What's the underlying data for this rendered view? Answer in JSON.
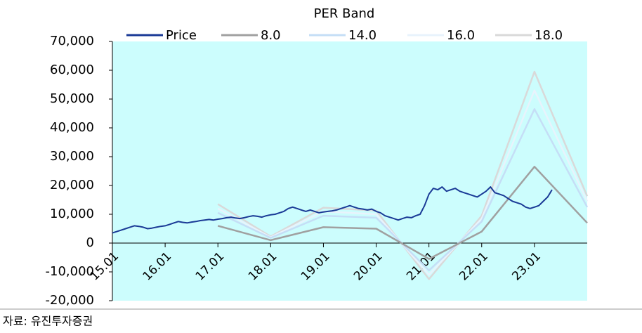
{
  "chart_data": {
    "type": "line",
    "title": "PER Band",
    "xlim": [
      "15.01",
      "24.01"
    ],
    "xticks": [
      "15.01",
      "16.01",
      "17.01",
      "18.01",
      "19.01",
      "20.01",
      "21.01",
      "22.01",
      "23.01"
    ],
    "ylim": [
      -20000,
      70000
    ],
    "yticks": [
      {
        "value": -20000,
        "label": "-20,000"
      },
      {
        "value": -10000,
        "label": "-10,000"
      },
      0,
      {
        "value": 10000,
        "label": "10,000"
      },
      {
        "value": 20000,
        "label": "20,000"
      },
      {
        "value": 30000,
        "label": "30,000"
      },
      {
        "value": 40000,
        "label": "40,000"
      },
      {
        "value": 50000,
        "label": "50,000"
      },
      {
        "value": 60000,
        "label": "60,000"
      },
      {
        "value": 70000,
        "label": "70,000"
      }
    ],
    "background": "#ccfdfd",
    "series": [
      {
        "name": "Price",
        "color": "#1a3a96",
        "x": [
          "15.01",
          "15.02",
          "15.03",
          "15.04",
          "15.05",
          "15.06",
          "15.07",
          "15.08",
          "15.09",
          "15.10",
          "15.11",
          "15.12",
          "16.01",
          "16.02",
          "16.03",
          "16.04",
          "16.05",
          "16.06",
          "16.07",
          "16.08",
          "16.09",
          "16.10",
          "16.11",
          "16.12",
          "17.01",
          "17.02",
          "17.03",
          "17.04",
          "17.05",
          "17.06",
          "17.07",
          "17.08",
          "17.09",
          "17.10",
          "17.11",
          "17.12",
          "18.01",
          "18.02",
          "18.03",
          "18.04",
          "18.05",
          "18.06",
          "18.07",
          "18.08",
          "18.09",
          "18.10",
          "18.11",
          "18.12",
          "19.01",
          "19.02",
          "19.03",
          "19.04",
          "19.05",
          "19.06",
          "19.07",
          "19.08",
          "19.09",
          "19.10",
          "19.11",
          "19.12",
          "20.01",
          "20.02",
          "20.03",
          "20.04",
          "20.05",
          "20.06",
          "20.07",
          "20.08",
          "20.09",
          "20.10",
          "20.11",
          "20.12",
          "21.01",
          "21.02",
          "21.03",
          "21.04",
          "21.05",
          "21.06",
          "21.07",
          "21.08",
          "21.09",
          "21.10",
          "21.11",
          "21.12",
          "22.01",
          "22.02",
          "22.03",
          "22.04",
          "22.05",
          "22.06",
          "22.07",
          "22.08",
          "22.09",
          "22.10",
          "22.11",
          "22.12",
          "23.01",
          "23.02",
          "23.03",
          "23.04",
          "23.05"
        ],
        "values": [
          3500,
          4000,
          4500,
          5000,
          5500,
          6000,
          5800,
          5500,
          5000,
          5200,
          5500,
          5800,
          6000,
          6500,
          7000,
          7500,
          7200,
          7000,
          7300,
          7500,
          7800,
          8000,
          8200,
          8000,
          8300,
          8500,
          8800,
          9000,
          8700,
          8500,
          8800,
          9200,
          9500,
          9300,
          9000,
          9500,
          9800,
          10000,
          10500,
          11000,
          12000,
          12500,
          12000,
          11500,
          11000,
          11500,
          11000,
          10500,
          10800,
          11000,
          11200,
          11500,
          12000,
          12500,
          13000,
          12500,
          12000,
          11800,
          11500,
          11800,
          11000,
          10500,
          9500,
          9000,
          8500,
          8000,
          8500,
          9000,
          8800,
          9500,
          10000,
          13000,
          17000,
          19000,
          18500,
          19500,
          18000,
          18500,
          19000,
          18000,
          17500,
          17000,
          16500,
          16000,
          17000,
          18000,
          19500,
          17500,
          17000,
          16500,
          15500,
          14500,
          14000,
          13500,
          12500,
          12000,
          12500,
          13000,
          14500,
          16000,
          18500
        ]
      },
      {
        "name": "8.0",
        "color": "#a0a0a0",
        "x": [
          "17.01",
          "18.01",
          "19.01",
          "20.01",
          "21.01",
          "22.01",
          "23.01",
          "24.01"
        ],
        "values": [
          6000,
          1000,
          5500,
          5000,
          -5500,
          4000,
          26500,
          7000
        ]
      },
      {
        "name": "14.0",
        "color": "#c5def6",
        "x": [
          "17.01",
          "18.01",
          "19.01",
          "20.01",
          "21.01",
          "22.01",
          "23.01",
          "24.01"
        ],
        "values": [
          10500,
          1800,
          9500,
          8800,
          -9500,
          7500,
          46500,
          12500
        ]
      },
      {
        "name": "16.0",
        "color": "#e8f3fc",
        "x": [
          "17.01",
          "18.01",
          "19.01",
          "20.01",
          "21.01",
          "22.01",
          "23.01",
          "24.01"
        ],
        "values": [
          12000,
          2000,
          11000,
          10000,
          -11000,
          8500,
          53000,
          14500
        ]
      },
      {
        "name": "18.0",
        "color": "#d9d9d9",
        "x": [
          "17.01",
          "18.01",
          "19.01",
          "20.01",
          "21.01",
          "22.01",
          "23.01",
          "24.01"
        ],
        "values": [
          13500,
          2300,
          12300,
          11300,
          -12500,
          9500,
          59500,
          16300
        ]
      }
    ]
  },
  "source": "자료: 유진투자증권"
}
